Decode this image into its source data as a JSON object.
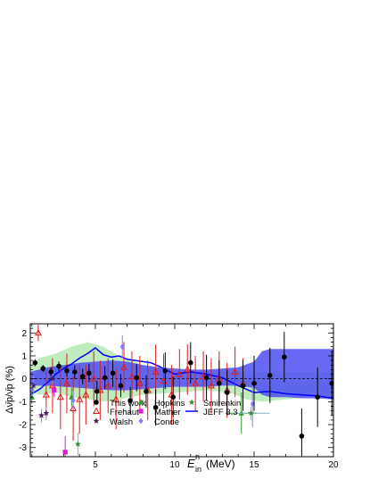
{
  "chart_data": {
    "type": "scatter",
    "xlabel_main": "E",
    "xlabel_sup": "n",
    "xlabel_sub": "in",
    "xlabel_unit": "(MeV)",
    "ylabel": "Δν̄p/ν̄p (%)",
    "xlim": [
      0.9,
      20
    ],
    "ylim": [
      -3.4,
      2.4
    ],
    "x_ticks": [
      "5",
      "10",
      "15",
      "20"
    ],
    "y_ticks": [
      "-3",
      "-2",
      "-1",
      "0",
      "1",
      "2"
    ],
    "legend": [
      {
        "name": "This work",
        "marker": "filled-circle",
        "color": "#000000"
      },
      {
        "name": "Frehaut",
        "marker": "open-triangle",
        "color": "#e11a1a"
      },
      {
        "name": "Walsh",
        "marker": "star",
        "color": "#4a1f5c"
      },
      {
        "name": "Hopkins",
        "marker": "triangle",
        "color": "#2e9a2e"
      },
      {
        "name": "Mather",
        "marker": "square",
        "color": "#d91ad9"
      },
      {
        "name": "Conde",
        "marker": "diamond",
        "color": "#8080ff"
      },
      {
        "name": "Smirenkin",
        "marker": "star",
        "color": "#3c8c3c"
      },
      {
        "name": "JEFF 3.3",
        "marker": "line",
        "color": "#0000ff"
      }
    ],
    "band_green": {
      "x": [
        0.9,
        1.5,
        2.5,
        3.5,
        4.5,
        5.5,
        6.5,
        8,
        10,
        12,
        13.5,
        14.5,
        15.5,
        17,
        18.5,
        20
      ],
      "upper": [
        0.6,
        0.9,
        1.1,
        1.4,
        1.6,
        1.4,
        1.0,
        0.6,
        0.35,
        0.3,
        0.3,
        0.3,
        0.3,
        0.3,
        0.3,
        0.3
      ],
      "lower": [
        -0.6,
        -0.7,
        -0.6,
        -0.8,
        -0.9,
        -1.0,
        -0.9,
        -0.7,
        -0.6,
        -0.5,
        -0.6,
        -0.9,
        -1.0,
        -0.9,
        -0.8,
        -0.6
      ]
    },
    "band_blue": {
      "x": [
        0.9,
        2,
        3,
        4,
        5,
        6,
        7,
        8,
        9,
        10,
        11,
        12,
        13,
        14,
        15,
        15.5,
        16,
        17,
        18,
        19,
        20
      ],
      "upper": [
        0.3,
        0.5,
        0.6,
        0.7,
        0.75,
        0.8,
        0.75,
        0.6,
        0.5,
        0.45,
        0.4,
        0.4,
        0.45,
        0.5,
        0.75,
        1.2,
        1.3,
        1.3,
        1.3,
        1.3,
        1.3
      ],
      "lower": [
        -0.3,
        -0.3,
        -0.35,
        -0.4,
        -0.45,
        -0.5,
        -0.5,
        -0.45,
        -0.4,
        -0.35,
        -0.35,
        -0.35,
        -0.3,
        -0.3,
        -0.4,
        -0.7,
        -0.8,
        -0.8,
        -0.85,
        -0.85,
        -0.9
      ]
    },
    "jeff": {
      "x": [
        0.9,
        1.5,
        2,
        2.5,
        3,
        3.5,
        4,
        4.5,
        5,
        5.5,
        6,
        6.5,
        7,
        7.5,
        8,
        8.5,
        9,
        10,
        11,
        12,
        13,
        14,
        15,
        16,
        17,
        18,
        19,
        20
      ],
      "y": [
        -0.7,
        -0.45,
        -0.15,
        0.2,
        0.45,
        0.65,
        0.9,
        1.1,
        1.35,
        1.05,
        0.95,
        1.0,
        0.85,
        0.8,
        0.75,
        0.7,
        0.55,
        0.2,
        0.3,
        0.2,
        0.05,
        -0.3,
        -0.6,
        -0.55,
        -0.65,
        -0.7,
        -0.75,
        -0.85
      ]
    },
    "this_work": [
      {
        "x": 1.2,
        "y": 0.7,
        "e": 0.15
      },
      {
        "x": 1.7,
        "y": 0.45,
        "e": 0.15
      },
      {
        "x": 2.2,
        "y": 0.3,
        "e": 0.2
      },
      {
        "x": 2.7,
        "y": 0.55,
        "e": 0.2
      },
      {
        "x": 3.2,
        "y": 0.35,
        "e": 0.25
      },
      {
        "x": 3.7,
        "y": 0.3,
        "e": 0.3
      },
      {
        "x": 4.2,
        "y": 0.1,
        "e": 0.35
      },
      {
        "x": 4.6,
        "y": 0.25,
        "e": 0.4
      },
      {
        "x": 5.1,
        "y": -0.55,
        "e": 0.45
      },
      {
        "x": 5.6,
        "y": 0.05,
        "e": 0.5
      },
      {
        "x": 6.1,
        "y": 0.25,
        "e": 0.6
      },
      {
        "x": 6.6,
        "y": -0.3,
        "e": 0.5
      },
      {
        "x": 7.2,
        "y": -0.95,
        "e": 0.6
      },
      {
        "x": 7.6,
        "y": 0.05,
        "e": 0.6
      },
      {
        "x": 8.2,
        "y": -0.55,
        "e": 0.7
      },
      {
        "x": 8.8,
        "y": -1.25,
        "e": 0.8
      },
      {
        "x": 9.4,
        "y": 0.35,
        "e": 0.8
      },
      {
        "x": 9.9,
        "y": -0.8,
        "e": 0.9
      },
      {
        "x": 11.0,
        "y": 0.7,
        "e": 0.9
      },
      {
        "x": 12.0,
        "y": 0.05,
        "e": 1.0
      },
      {
        "x": 12.8,
        "y": -0.2,
        "e": 1.0
      },
      {
        "x": 13.3,
        "y": -0.6,
        "e": 1.0
      },
      {
        "x": 14.3,
        "y": -0.3,
        "e": 1.1
      },
      {
        "x": 15.0,
        "y": -0.2,
        "e": 1.2
      },
      {
        "x": 16.0,
        "y": 0.15,
        "e": 1.2
      },
      {
        "x": 16.9,
        "y": 0.95,
        "e": 1.1
      },
      {
        "x": 18.0,
        "y": -2.5,
        "e": 1.2
      },
      {
        "x": 19.0,
        "y": -0.8,
        "e": 1.3
      },
      {
        "x": 19.9,
        "y": -0.2,
        "e": 1.4
      }
    ],
    "frehaut": [
      {
        "x": 1.4,
        "y": 2.0,
        "e": 0.35
      },
      {
        "x": 1.9,
        "y": -0.7,
        "e": 1.0
      },
      {
        "x": 2.3,
        "y": -0.3,
        "e": 1.2
      },
      {
        "x": 2.8,
        "y": -0.8,
        "e": 1.4
      },
      {
        "x": 3.2,
        "y": -0.2,
        "e": 1.3
      },
      {
        "x": 3.6,
        "y": -1.3,
        "e": 1.4
      },
      {
        "x": 4.0,
        "y": -0.9,
        "e": 1.5
      },
      {
        "x": 4.4,
        "y": -0.7,
        "e": 1.3
      },
      {
        "x": 4.9,
        "y": 0.0,
        "e": 1.2
      },
      {
        "x": 5.3,
        "y": -0.5,
        "e": 1.3
      },
      {
        "x": 5.8,
        "y": -0.3,
        "e": 1.2
      },
      {
        "x": 6.3,
        "y": -0.9,
        "e": 1.3
      },
      {
        "x": 6.8,
        "y": 0.5,
        "e": 1.1
      },
      {
        "x": 7.3,
        "y": 0.1,
        "e": 1.1
      },
      {
        "x": 7.8,
        "y": -0.2,
        "e": 1.2
      },
      {
        "x": 8.3,
        "y": -0.5,
        "e": 1.3
      },
      {
        "x": 8.8,
        "y": 0.3,
        "e": 1.2
      },
      {
        "x": 9.3,
        "y": -0.1,
        "e": 1.2
      },
      {
        "x": 9.8,
        "y": -0.7,
        "e": 1.3
      },
      {
        "x": 10.3,
        "y": 0.2,
        "e": 1.1
      },
      {
        "x": 10.8,
        "y": 0.4,
        "e": 1.1
      },
      {
        "x": 11.3,
        "y": -0.2,
        "e": 1.2
      },
      {
        "x": 11.8,
        "y": 0.1,
        "e": 1.1
      },
      {
        "x": 12.3,
        "y": -0.3,
        "e": 1.2
      },
      {
        "x": 12.8,
        "y": 0.0,
        "e": 1.2
      },
      {
        "x": 13.3,
        "y": -0.5,
        "e": 1.2
      },
      {
        "x": 13.8,
        "y": 0.3,
        "e": 1.1
      },
      {
        "x": 14.3,
        "y": -0.2,
        "e": 1.1
      }
    ],
    "walsh": [
      {
        "x": 1.1,
        "y": -0.3,
        "e": 0.4
      },
      {
        "x": 1.6,
        "y": -1.6,
        "e": 0.3
      },
      {
        "x": 1.9,
        "y": -1.5,
        "e": 0.3
      },
      {
        "x": 2.3,
        "y": 0.0,
        "e": 0.3
      }
    ],
    "hopkins": [
      {
        "x": 1.0,
        "y": -0.8,
        "e": 0.3
      },
      {
        "x": 3.5,
        "y": -0.8,
        "e": 0.4
      },
      {
        "x": 14.2,
        "y": -1.5,
        "e": 0.9,
        "xe": 1.0
      }
    ],
    "mather": [
      {
        "x": 3.1,
        "y": -3.2,
        "e": 0.7
      },
      {
        "x": 2.4,
        "y": -0.5,
        "e": 0.3
      }
    ],
    "conde": [
      {
        "x": 1.0,
        "y": -0.5,
        "e": 0.3
      },
      {
        "x": 3.6,
        "y": -0.95,
        "e": 0.4
      },
      {
        "x": 6.7,
        "y": 1.4,
        "e": 0.5
      },
      {
        "x": 14.9,
        "y": -1.1,
        "e": 1.0
      }
    ],
    "smirenkin": [
      {
        "x": 3.9,
        "y": -2.85,
        "e": 0.5
      },
      {
        "x": 14.8,
        "y": -1.5,
        "e": 0.3,
        "xe": 1.2
      }
    ]
  }
}
